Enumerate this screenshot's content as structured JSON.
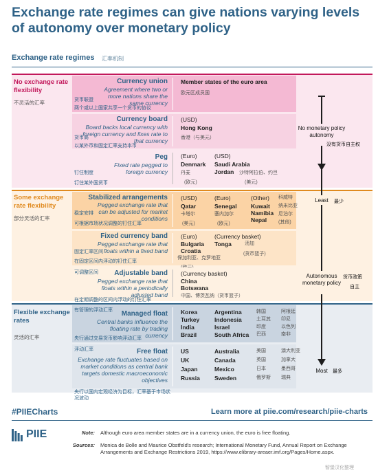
{
  "header": {
    "title": "Exchange rate regimes can give nations varying levels of autonomy over monetary policy",
    "subtitle": "Exchange rate regimes",
    "subtitle_cn": "汇率机制"
  },
  "colors": {
    "pink_band": "#f7d2e2",
    "pink_box": "#f4b9d3",
    "orange_band": "#fde4c7",
    "orange_box": "#fbd3a5",
    "blue_band": "#dfe5ec",
    "blue_box": "#c9d4e0",
    "accent_red": "#c2185b",
    "accent_orange": "#e08a1e",
    "accent_blue": "#2f6287"
  },
  "chart_data": {
    "type": "table",
    "categories": [
      {
        "label": "No exchange rate flexibility",
        "label_cn": "不灵活的汇率",
        "rows": [
          {
            "name": "Currency union",
            "name_cn": "货币联盟",
            "desc": "Agreement where two or more nations share the same currency",
            "desc_cn": "两个或以上国家共享一个货币的协议",
            "header": "Member states of the euro area",
            "header_cn": "欧元区成员国",
            "columns": []
          },
          {
            "name": "Currency board",
            "name_cn": "货币局",
            "desc": "Board backs local currency with foreign currency and fixes rate to that currency",
            "desc_cn": "以某外币和固定汇率支持本币",
            "header": "(USD)",
            "columns": [
              {
                "items": [
                  {
                    "en": "Hong Kong",
                    "cn": "香港（与美元）"
                  }
                ]
              }
            ]
          },
          {
            "name": "Peg",
            "name_cn": "钉住制度",
            "desc": "Fixed rate pegged to foreign currency",
            "desc_cn": "钉住某外国货币",
            "columns": [
              {
                "header": "(Euro)",
                "items": [
                  {
                    "en": "Denmark",
                    "cn": "丹麦"
                  }
                ],
                "footer": "(欧元)"
              },
              {
                "header": "(USD)",
                "items": [
                  {
                    "en": "Saudi Arabia",
                    "cn": ""
                  },
                  {
                    "en": "Jordan",
                    "cn": "沙特阿拉伯、约旦"
                  }
                ],
                "footer": "(美元)"
              }
            ]
          }
        ]
      },
      {
        "label": "Some exchange rate flexibility",
        "label_cn": "部分灵活的汇率",
        "rows": [
          {
            "name": "Stabilized arrangements",
            "name_cn": "稳定安排",
            "desc": "Pegged exchange rate that can be adjusted for market conditions",
            "desc_cn": "可根据市场状况调整的钉住汇率",
            "columns": [
              {
                "header": "(USD)",
                "items": [
                  {
                    "en": "Qatar",
                    "cn": "卡塔尔"
                  }
                ],
                "footer": "(美元)"
              },
              {
                "header": "(Euro)",
                "items": [
                  {
                    "en": "Senegal",
                    "cn": "塞内加尔"
                  }
                ],
                "footer": "(欧元)"
              },
              {
                "header": "(Other)",
                "items": [
                  {
                    "en": "Kuwait",
                    "cn": ""
                  },
                  {
                    "en": "Namibia",
                    "cn": ""
                  },
                  {
                    "en": "Nepal",
                    "cn": ""
                  }
                ],
                "footer": ""
              },
              {
                "header": "科威特",
                "items": [
                  {
                    "en": "",
                    "cn": "纳米比亚"
                  },
                  {
                    "en": "",
                    "cn": "尼泊尔"
                  }
                ],
                "footer": "(其他)"
              }
            ]
          },
          {
            "name": "Fixed currency band",
            "name_cn": "固定汇率区间",
            "desc": "Pegged exchange rate that floats within a fixed band",
            "desc_cn": "在固定区间内浮动的钉住汇率",
            "columns": [
              {
                "header": "(Euro)",
                "items": [
                  {
                    "en": "Bulgaria",
                    "cn": ""
                  },
                  {
                    "en": "Croatia",
                    "cn": "保加利亚、克罗地亚"
                  }
                ],
                "footer": "(欧元)"
              },
              {
                "header": "(Currency basket)",
                "items": [
                  {
                    "en": "Tonga",
                    "cn": "汤加"
                  }
                ],
                "footer": "(货币篮子)"
              }
            ]
          },
          {
            "name": "Adjustable band",
            "name_cn": "可调整区间",
            "desc": "Pegged exchange rate that floats within a periodically adjusted band",
            "desc_cn": "在定期调整的区间内浮动的钉住汇率",
            "columns": [
              {
                "header": "(Currency basket)",
                "items": [
                  {
                    "en": "China",
                    "cn": ""
                  },
                  {
                    "en": "Botswana",
                    "cn": "中国、博茨瓦纳（货币篮子）"
                  }
                ],
                "footer": ""
              }
            ]
          }
        ]
      },
      {
        "label": "Flexible exchange rates",
        "label_cn": "灵活的汇率",
        "rows": [
          {
            "name": "Managed float",
            "name_cn": "有管理的浮动汇率",
            "desc": "Central banks influence the floating rate by trading currency",
            "desc_cn": "央行通过交易货币影响浮动汇率",
            "columns": [
              {
                "items": [
                  {
                    "en": "Korea"
                  },
                  {
                    "en": "Turkey"
                  },
                  {
                    "en": "India"
                  },
                  {
                    "en": "Brazil"
                  }
                ]
              },
              {
                "items": [
                  {
                    "en": "Argentina"
                  },
                  {
                    "en": "Indonesia"
                  },
                  {
                    "en": "Israel"
                  },
                  {
                    "en": "South Africa"
                  }
                ]
              },
              {
                "items": [
                  {
                    "cn": "韩国"
                  },
                  {
                    "cn": "土耳其"
                  },
                  {
                    "cn": "印度"
                  },
                  {
                    "cn": "巴西"
                  }
                ]
              },
              {
                "items": [
                  {
                    "cn": "阿根廷"
                  },
                  {
                    "cn": "印尼"
                  },
                  {
                    "cn": "以色列"
                  },
                  {
                    "cn": "南非"
                  }
                ]
              }
            ]
          },
          {
            "name": "Free float",
            "name_cn": "浮动汇率",
            "desc": "Exchange rate fluctuates based on market conditions as central bank targets domestic macroeconomic objectives",
            "desc_cn": "央行以国内宏观经济为目标，汇率基于市场状况波动",
            "columns": [
              {
                "items": [
                  {
                    "en": "US"
                  },
                  {
                    "en": "UK"
                  },
                  {
                    "en": "Japan"
                  },
                  {
                    "en": "Russia"
                  }
                ]
              },
              {
                "items": [
                  {
                    "en": "Australia"
                  },
                  {
                    "en": "Canada"
                  },
                  {
                    "en": "Mexico"
                  },
                  {
                    "en": "Sweden"
                  }
                ]
              },
              {
                "items": [
                  {
                    "cn": "美国"
                  },
                  {
                    "cn": "英国"
                  },
                  {
                    "cn": "日本"
                  },
                  {
                    "cn": "俄罗斯"
                  }
                ]
              },
              {
                "items": [
                  {
                    "cn": "澳大利亚"
                  },
                  {
                    "cn": "加拿大"
                  },
                  {
                    "cn": "墨西哥"
                  },
                  {
                    "cn": "瑞典"
                  }
                ]
              }
            ]
          }
        ]
      }
    ],
    "autonomy_axis": {
      "top_label": "No monetary policy autonomy",
      "top_label_cn": "没有货币自主权",
      "least_label": "Least",
      "least_cn": "最少",
      "mid_label": "Autonomous monetary policy",
      "mid_cn_1": "货币政策",
      "mid_cn_2": "自主",
      "most_label": "Most",
      "most_cn": "最多"
    }
  },
  "footer": {
    "hashtag": "#PIIECharts",
    "link": "Learn more at piie.com/research/piie-charts",
    "logo_text": "PIIE",
    "note_key": "Note:",
    "note": "Although euro area member states are in a currency union, the euro is free floating.",
    "sources_key": "Sources:",
    "sources": "Monica de Bolle and Maurice Obstfeld's research; International Monetary Fund, Annual Report on Exchange Arrangements and Exchange Restrictions 2019, https://www.elibrary-areaer.imf.org/Pages/Home.aspx.",
    "watermark": "智堡汉化整理"
  }
}
